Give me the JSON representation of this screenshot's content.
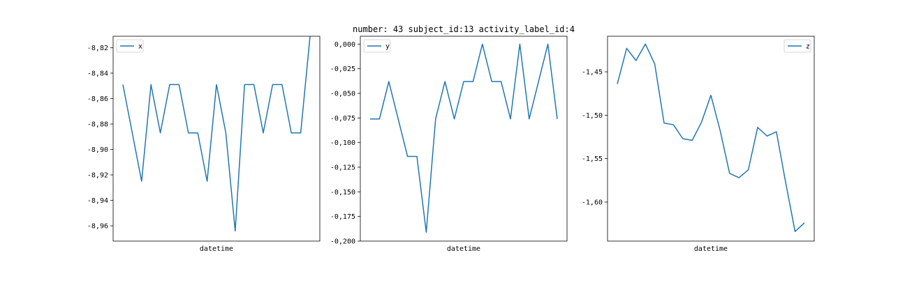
{
  "suptitle": "number: 43 subject_id:13 activity_label_id:4",
  "colors": {
    "line": "#1f77b4",
    "axes": "#000000"
  },
  "chart_data": [
    {
      "type": "line",
      "title": "",
      "xlabel": "datetime",
      "ylabel": "",
      "legend_position": "upper left",
      "grid": false,
      "ylim": [
        -8.972,
        -8.811
      ],
      "yticks": [
        -8.96,
        -8.94,
        -8.92,
        -8.9,
        -8.88,
        -8.86,
        -8.84,
        -8.82
      ],
      "yticklabels": [
        "-8,96",
        "-8,94",
        "-8,92",
        "-8,90",
        "-8,88",
        "-8,86",
        "-8,84",
        "-8,82"
      ],
      "series": [
        {
          "name": "x",
          "values": [
            -8.849,
            -8.887,
            -8.925,
            -8.849,
            -8.887,
            -8.849,
            -8.849,
            -8.887,
            -8.887,
            -8.925,
            -8.849,
            -8.887,
            -8.964,
            -8.849,
            -8.849,
            -8.887,
            -8.849,
            -8.849,
            -8.887,
            -8.887,
            -8.811
          ]
        }
      ]
    },
    {
      "type": "line",
      "title": "",
      "xlabel": "datetime",
      "ylabel": "",
      "legend_position": "upper left",
      "grid": false,
      "ylim": [
        -0.2,
        0.008
      ],
      "yticks": [
        -0.2,
        -0.175,
        -0.15,
        -0.125,
        -0.1,
        -0.075,
        -0.05,
        -0.025,
        0.0
      ],
      "yticklabels": [
        "-0,200",
        "-0,175",
        "-0,150",
        "-0,125",
        "-0,100",
        "-0,075",
        "-0,050",
        "-0,025",
        "0,000"
      ],
      "series": [
        {
          "name": "y",
          "values": [
            -0.076,
            -0.076,
            -0.038,
            -0.076,
            -0.114,
            -0.114,
            -0.191,
            -0.076,
            -0.038,
            -0.076,
            -0.038,
            -0.038,
            0.0,
            -0.038,
            -0.038,
            -0.076,
            0.0,
            -0.076,
            -0.038,
            0.0,
            -0.076
          ]
        }
      ]
    },
    {
      "type": "line",
      "title": "",
      "xlabel": "datetime",
      "ylabel": "",
      "legend_position": "upper right",
      "grid": false,
      "ylim": [
        -1.645,
        -1.409
      ],
      "yticks": [
        -1.6,
        -1.55,
        -1.5,
        -1.45
      ],
      "yticklabels": [
        "-1,60",
        "-1,55",
        "-1,50",
        "-1,45"
      ],
      "series": [
        {
          "name": "z",
          "values": [
            -1.464,
            -1.423,
            -1.437,
            -1.418,
            -1.441,
            -1.509,
            -1.511,
            -1.527,
            -1.529,
            -1.508,
            -1.477,
            -1.518,
            -1.567,
            -1.572,
            -1.563,
            -1.514,
            -1.524,
            -1.519,
            -1.578,
            -1.634,
            -1.624
          ]
        }
      ]
    }
  ]
}
